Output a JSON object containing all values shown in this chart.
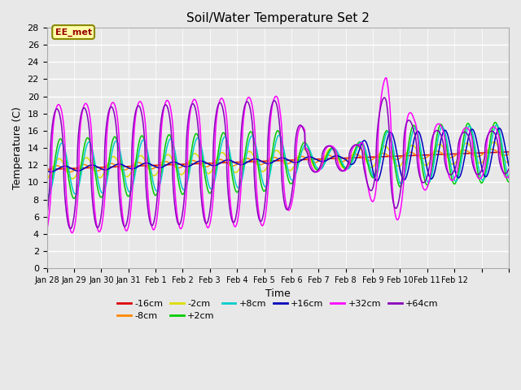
{
  "title": "Soil/Water Temperature Set 2",
  "xlabel": "Time",
  "ylabel": "Temperature (C)",
  "ylim": [
    0,
    28
  ],
  "yticks": [
    0,
    2,
    4,
    6,
    8,
    10,
    12,
    14,
    16,
    18,
    20,
    22,
    24,
    26,
    28
  ],
  "annotation": "EE_met",
  "annotation_color": "#990000",
  "annotation_bg": "#FFFFAA",
  "annotation_edge": "#888800",
  "bg_color": "#E8E8E8",
  "plot_bg": "#E8E8E8",
  "series_colors": {
    "-16cm": "#DD0000",
    "-8cm": "#FF8800",
    "-2cm": "#DDDD00",
    "+2cm": "#00CC00",
    "+8cm": "#00CCCC",
    "+16cm": "#0000BB",
    "+32cm": "#FF00FF",
    "+64cm": "#8800BB"
  },
  "x_start": 28.0,
  "x_end": 45.0,
  "xtick_positions": [
    28,
    29,
    30,
    31,
    32,
    33,
    34,
    35,
    36,
    37,
    38,
    39,
    40,
    41,
    42,
    43,
    44,
    45
  ],
  "xtick_labels": [
    "Jan 28",
    "Jan 29",
    "Jan 30",
    "Jan 31",
    "Feb 1",
    "Feb 2",
    "Feb 3",
    "Feb 4",
    "Feb 5",
    "Feb 6",
    "Feb 7",
    "Feb 8",
    "Feb 9",
    "Feb 10",
    "Feb 11",
    "Feb 12",
    "",
    ""
  ],
  "grid_color": "#FFFFFF",
  "legend_entries": [
    "-16cm",
    "-8cm",
    "-2cm",
    "+2cm",
    "+8cm",
    "+16cm",
    "+32cm",
    "+64cm"
  ]
}
